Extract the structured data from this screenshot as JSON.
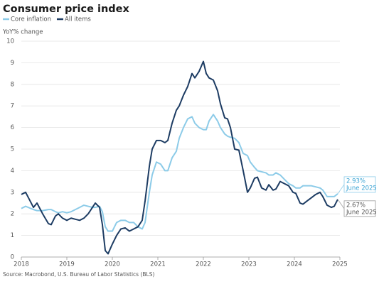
{
  "chart_data": {
    "type": "line",
    "title": "Consumer price index",
    "y_label": "YoY% change",
    "source": "Source: Macrobond, U.S. Bureau of Labor Statistics (BLS)",
    "x": [
      2018,
      2018.094,
      2018.266,
      2018.344,
      2018.469,
      2018.594,
      2018.656,
      2018.75,
      2018.813,
      2018.906,
      2019,
      2019.094,
      2019.188,
      2019.281,
      2019.375,
      2019.469,
      2019.563,
      2019.625,
      2019.719,
      2019.781,
      2019.844,
      2019.906,
      2020,
      2020.094,
      2020.188,
      2020.281,
      2020.375,
      2020.469,
      2020.563,
      2020.656,
      2020.719,
      2020.813,
      2020.875,
      2020.969,
      2021.063,
      2021.156,
      2021.219,
      2021.313,
      2021.406,
      2021.469,
      2021.563,
      2021.656,
      2021.75,
      2021.813,
      2021.906,
      2022,
      2022.063,
      2022.125,
      2022.219,
      2022.313,
      2022.375,
      2022.469,
      2022.531,
      2022.594,
      2022.688,
      2022.781,
      2022.875,
      2022.969,
      2023.031,
      2023.125,
      2023.188,
      2023.281,
      2023.375,
      2023.438,
      2023.531,
      2023.594,
      2023.688,
      2023.781,
      2023.875,
      2023.969,
      2024.031,
      2024.125,
      2024.188,
      2024.281,
      2024.375,
      2024.469,
      2024.563,
      2024.625,
      2024.719,
      2024.813,
      2024.875,
      2024.953
    ],
    "series": [
      {
        "name": "Core inflation",
        "color": "#8ccbe8",
        "values": [
          2.25,
          2.35,
          2.2,
          2.15,
          2.15,
          2.2,
          2.2,
          2.1,
          2.05,
          2.1,
          2.05,
          2.1,
          2.2,
          2.3,
          2.4,
          2.35,
          2.3,
          2.3,
          2.35,
          2.1,
          1.4,
          1.2,
          1.2,
          1.6,
          1.7,
          1.7,
          1.6,
          1.6,
          1.4,
          1.3,
          1.6,
          3.0,
          3.8,
          4.4,
          4.3,
          4.0,
          4.0,
          4.6,
          4.9,
          5.5,
          6.0,
          6.4,
          6.5,
          6.2,
          6.0,
          5.9,
          5.9,
          6.3,
          6.6,
          6.3,
          6.0,
          5.7,
          5.6,
          5.55,
          5.5,
          5.3,
          4.8,
          4.7,
          4.4,
          4.15,
          4.0,
          3.95,
          3.9,
          3.8,
          3.8,
          3.9,
          3.8,
          3.6,
          3.4,
          3.3,
          3.2,
          3.2,
          3.3,
          3.3,
          3.3,
          3.25,
          3.2,
          3.1,
          2.8,
          2.8,
          2.8,
          2.93
        ]
      },
      {
        "name": "All items",
        "color": "#1d3c63",
        "values": [
          2.9,
          3.0,
          2.3,
          2.5,
          2.0,
          1.55,
          1.5,
          1.9,
          2.0,
          1.8,
          1.7,
          1.8,
          1.75,
          1.7,
          1.8,
          2.0,
          2.3,
          2.5,
          2.3,
          1.5,
          0.3,
          0.15,
          0.6,
          1.0,
          1.3,
          1.35,
          1.2,
          1.3,
          1.4,
          1.7,
          2.6,
          4.2,
          5.0,
          5.4,
          5.4,
          5.3,
          5.4,
          6.2,
          6.8,
          7.0,
          7.5,
          7.9,
          8.5,
          8.3,
          8.6,
          9.06,
          8.5,
          8.3,
          8.2,
          7.7,
          7.1,
          6.45,
          6.4,
          6.0,
          5.0,
          4.95,
          4.0,
          3.0,
          3.2,
          3.65,
          3.7,
          3.2,
          3.1,
          3.35,
          3.1,
          3.15,
          3.5,
          3.4,
          3.3,
          3.0,
          2.95,
          2.5,
          2.45,
          2.6,
          2.75,
          2.9,
          3.0,
          2.8,
          2.4,
          2.3,
          2.35,
          2.67
        ]
      }
    ],
    "annotations": [
      {
        "value": "2.93%",
        "date": "June 2025"
      },
      {
        "value": "2.67%",
        "date": "June 2025"
      }
    ],
    "xlim": [
      2018,
      2025
    ],
    "xticks": [
      2018,
      2019,
      2020,
      2021,
      2022,
      2023,
      2024,
      2025
    ],
    "ylim": [
      0,
      10
    ],
    "yticks": [
      0,
      1,
      2,
      3,
      4,
      5,
      6,
      7,
      8,
      9,
      10
    ],
    "grid": true
  }
}
